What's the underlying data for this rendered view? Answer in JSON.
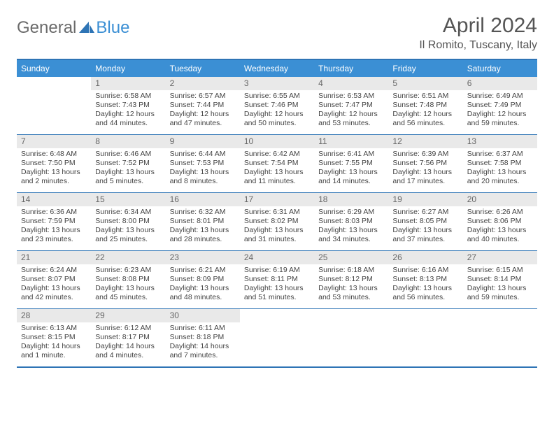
{
  "logo": {
    "part1": "General",
    "part2": "Blue"
  },
  "title": "April 2024",
  "location": "Il Romito, Tuscany, Italy",
  "dow": [
    "Sunday",
    "Monday",
    "Tuesday",
    "Wednesday",
    "Thursday",
    "Friday",
    "Saturday"
  ],
  "colors": {
    "header_bg": "#3b8fd4",
    "border": "#2e74b5",
    "daynum_bg": "#e9e9e9",
    "text": "#444444",
    "logo_gray": "#6b6b6b",
    "logo_blue": "#3b8fd4"
  },
  "weeks": [
    [
      {
        "n": "",
        "sr": "",
        "ss": "",
        "dl": ""
      },
      {
        "n": "1",
        "sr": "Sunrise: 6:58 AM",
        "ss": "Sunset: 7:43 PM",
        "dl": "Daylight: 12 hours and 44 minutes."
      },
      {
        "n": "2",
        "sr": "Sunrise: 6:57 AM",
        "ss": "Sunset: 7:44 PM",
        "dl": "Daylight: 12 hours and 47 minutes."
      },
      {
        "n": "3",
        "sr": "Sunrise: 6:55 AM",
        "ss": "Sunset: 7:46 PM",
        "dl": "Daylight: 12 hours and 50 minutes."
      },
      {
        "n": "4",
        "sr": "Sunrise: 6:53 AM",
        "ss": "Sunset: 7:47 PM",
        "dl": "Daylight: 12 hours and 53 minutes."
      },
      {
        "n": "5",
        "sr": "Sunrise: 6:51 AM",
        "ss": "Sunset: 7:48 PM",
        "dl": "Daylight: 12 hours and 56 minutes."
      },
      {
        "n": "6",
        "sr": "Sunrise: 6:49 AM",
        "ss": "Sunset: 7:49 PM",
        "dl": "Daylight: 12 hours and 59 minutes."
      }
    ],
    [
      {
        "n": "7",
        "sr": "Sunrise: 6:48 AM",
        "ss": "Sunset: 7:50 PM",
        "dl": "Daylight: 13 hours and 2 minutes."
      },
      {
        "n": "8",
        "sr": "Sunrise: 6:46 AM",
        "ss": "Sunset: 7:52 PM",
        "dl": "Daylight: 13 hours and 5 minutes."
      },
      {
        "n": "9",
        "sr": "Sunrise: 6:44 AM",
        "ss": "Sunset: 7:53 PM",
        "dl": "Daylight: 13 hours and 8 minutes."
      },
      {
        "n": "10",
        "sr": "Sunrise: 6:42 AM",
        "ss": "Sunset: 7:54 PM",
        "dl": "Daylight: 13 hours and 11 minutes."
      },
      {
        "n": "11",
        "sr": "Sunrise: 6:41 AM",
        "ss": "Sunset: 7:55 PM",
        "dl": "Daylight: 13 hours and 14 minutes."
      },
      {
        "n": "12",
        "sr": "Sunrise: 6:39 AM",
        "ss": "Sunset: 7:56 PM",
        "dl": "Daylight: 13 hours and 17 minutes."
      },
      {
        "n": "13",
        "sr": "Sunrise: 6:37 AM",
        "ss": "Sunset: 7:58 PM",
        "dl": "Daylight: 13 hours and 20 minutes."
      }
    ],
    [
      {
        "n": "14",
        "sr": "Sunrise: 6:36 AM",
        "ss": "Sunset: 7:59 PM",
        "dl": "Daylight: 13 hours and 23 minutes."
      },
      {
        "n": "15",
        "sr": "Sunrise: 6:34 AM",
        "ss": "Sunset: 8:00 PM",
        "dl": "Daylight: 13 hours and 25 minutes."
      },
      {
        "n": "16",
        "sr": "Sunrise: 6:32 AM",
        "ss": "Sunset: 8:01 PM",
        "dl": "Daylight: 13 hours and 28 minutes."
      },
      {
        "n": "17",
        "sr": "Sunrise: 6:31 AM",
        "ss": "Sunset: 8:02 PM",
        "dl": "Daylight: 13 hours and 31 minutes."
      },
      {
        "n": "18",
        "sr": "Sunrise: 6:29 AM",
        "ss": "Sunset: 8:03 PM",
        "dl": "Daylight: 13 hours and 34 minutes."
      },
      {
        "n": "19",
        "sr": "Sunrise: 6:27 AM",
        "ss": "Sunset: 8:05 PM",
        "dl": "Daylight: 13 hours and 37 minutes."
      },
      {
        "n": "20",
        "sr": "Sunrise: 6:26 AM",
        "ss": "Sunset: 8:06 PM",
        "dl": "Daylight: 13 hours and 40 minutes."
      }
    ],
    [
      {
        "n": "21",
        "sr": "Sunrise: 6:24 AM",
        "ss": "Sunset: 8:07 PM",
        "dl": "Daylight: 13 hours and 42 minutes."
      },
      {
        "n": "22",
        "sr": "Sunrise: 6:23 AM",
        "ss": "Sunset: 8:08 PM",
        "dl": "Daylight: 13 hours and 45 minutes."
      },
      {
        "n": "23",
        "sr": "Sunrise: 6:21 AM",
        "ss": "Sunset: 8:09 PM",
        "dl": "Daylight: 13 hours and 48 minutes."
      },
      {
        "n": "24",
        "sr": "Sunrise: 6:19 AM",
        "ss": "Sunset: 8:11 PM",
        "dl": "Daylight: 13 hours and 51 minutes."
      },
      {
        "n": "25",
        "sr": "Sunrise: 6:18 AM",
        "ss": "Sunset: 8:12 PM",
        "dl": "Daylight: 13 hours and 53 minutes."
      },
      {
        "n": "26",
        "sr": "Sunrise: 6:16 AM",
        "ss": "Sunset: 8:13 PM",
        "dl": "Daylight: 13 hours and 56 minutes."
      },
      {
        "n": "27",
        "sr": "Sunrise: 6:15 AM",
        "ss": "Sunset: 8:14 PM",
        "dl": "Daylight: 13 hours and 59 minutes."
      }
    ],
    [
      {
        "n": "28",
        "sr": "Sunrise: 6:13 AM",
        "ss": "Sunset: 8:15 PM",
        "dl": "Daylight: 14 hours and 1 minute."
      },
      {
        "n": "29",
        "sr": "Sunrise: 6:12 AM",
        "ss": "Sunset: 8:17 PM",
        "dl": "Daylight: 14 hours and 4 minutes."
      },
      {
        "n": "30",
        "sr": "Sunrise: 6:11 AM",
        "ss": "Sunset: 8:18 PM",
        "dl": "Daylight: 14 hours and 7 minutes."
      },
      {
        "n": "",
        "sr": "",
        "ss": "",
        "dl": ""
      },
      {
        "n": "",
        "sr": "",
        "ss": "",
        "dl": ""
      },
      {
        "n": "",
        "sr": "",
        "ss": "",
        "dl": ""
      },
      {
        "n": "",
        "sr": "",
        "ss": "",
        "dl": ""
      }
    ]
  ]
}
